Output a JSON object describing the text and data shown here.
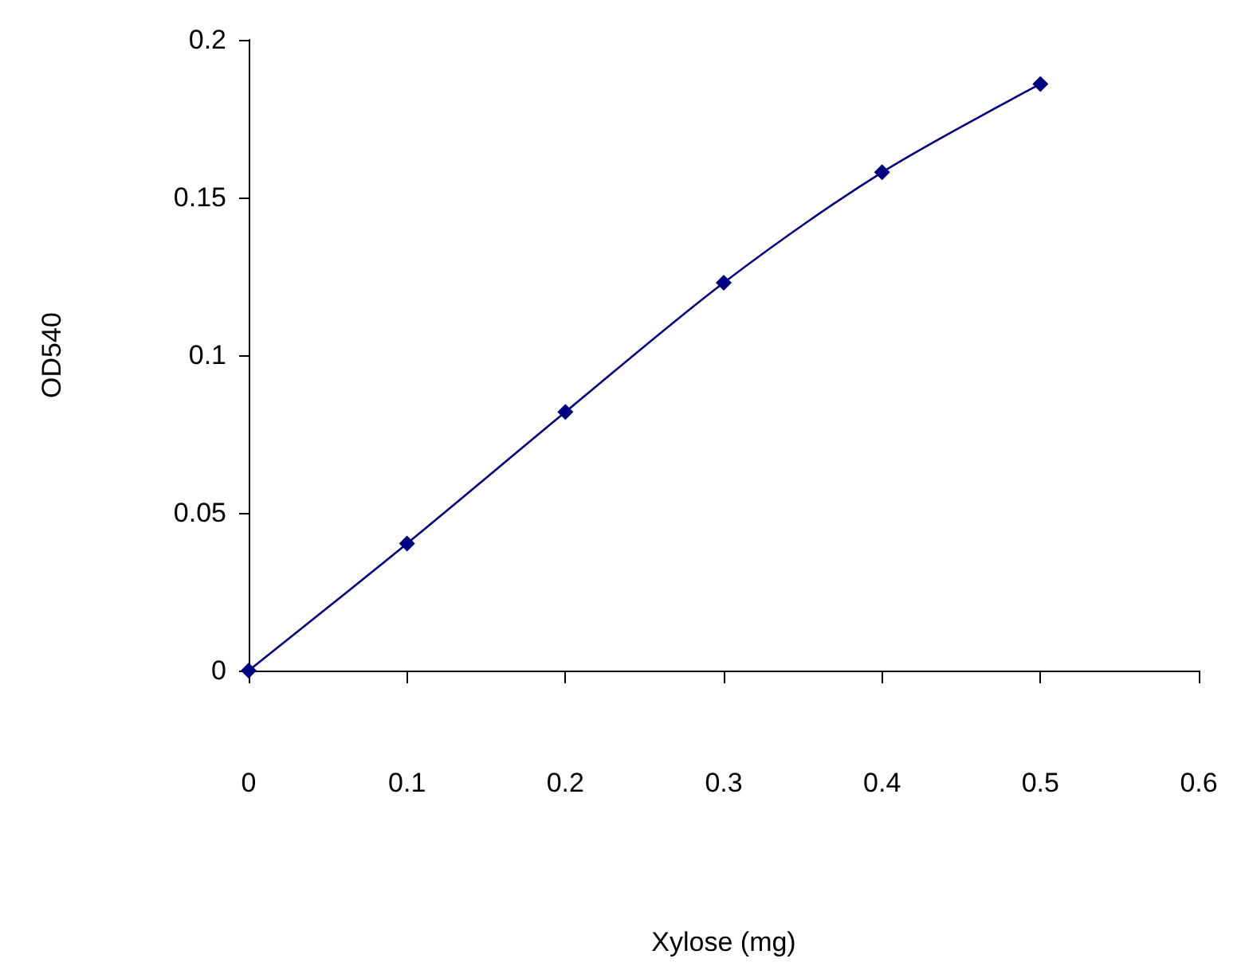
{
  "chart_data": {
    "type": "line",
    "xlabel": "Xylose (mg)",
    "ylabel": "OD540",
    "x": [
      0,
      0.1,
      0.2,
      0.3,
      0.4,
      0.5
    ],
    "series": [
      {
        "color": "#000080",
        "values": [
          0,
          0.0403,
          0.082,
          0.123,
          0.158,
          0.186
        ]
      }
    ],
    "xlim": [
      0,
      0.6
    ],
    "xticks": [
      0,
      0.1,
      0.2,
      0.3,
      0.4,
      0.5,
      0.6
    ],
    "ylim": [
      0,
      0.2
    ],
    "yticks": [
      0,
      0.05,
      0.1,
      0.15,
      0.2
    ],
    "grid": false,
    "marker": "diamond",
    "line_style": "solid"
  }
}
